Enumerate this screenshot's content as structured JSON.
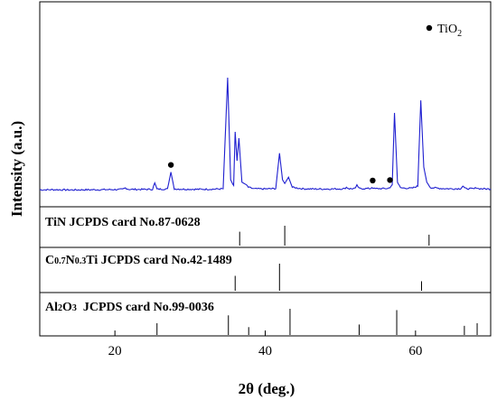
{
  "chart_data": {
    "type": "line",
    "xlabel": "2θ (deg.)",
    "ylabel": "Intensity (a.u.)",
    "xlim": [
      10,
      70
    ],
    "xticks": [
      20,
      40,
      60
    ],
    "grid": false,
    "legend": {
      "marker": "filled-circle",
      "label": "TiO2",
      "placement": "top-right"
    },
    "series": [
      {
        "color": "#1f1fd0",
        "points": [
          [
            10.0,
            2.0
          ],
          [
            12,
            2.1
          ],
          [
            14,
            1.9
          ],
          [
            16,
            2.0
          ],
          [
            18,
            2.1
          ],
          [
            20,
            2.2
          ],
          [
            21.0,
            2.3
          ],
          [
            21.4,
            3.5
          ],
          [
            21.8,
            2.4
          ],
          [
            23,
            2.3
          ],
          [
            25.0,
            2.4
          ],
          [
            25.3,
            7.5
          ],
          [
            25.6,
            2.5
          ],
          [
            27.0,
            2.6
          ],
          [
            27.45,
            16.0
          ],
          [
            27.9,
            2.7
          ],
          [
            29,
            2.5
          ],
          [
            31,
            2.4
          ],
          [
            33,
            2.5
          ],
          [
            34.4,
            2.8
          ],
          [
            35.0,
            91.0
          ],
          [
            35.4,
            10.0
          ],
          [
            35.8,
            5.0
          ],
          [
            36.0,
            48.0
          ],
          [
            36.25,
            25.0
          ],
          [
            36.5,
            43.0
          ],
          [
            36.9,
            8.0
          ],
          [
            37.5,
            6.0
          ],
          [
            37.75,
            4.0
          ],
          [
            38.5,
            2.8
          ],
          [
            40,
            2.7
          ],
          [
            41.4,
            3.0
          ],
          [
            41.9,
            31.0
          ],
          [
            42.3,
            10.0
          ],
          [
            42.6,
            7.0
          ],
          [
            43.1,
            12.0
          ],
          [
            43.6,
            4.0
          ],
          [
            45,
            2.8
          ],
          [
            47,
            2.6
          ],
          [
            49,
            2.7
          ],
          [
            50.5,
            2.8
          ],
          [
            50.8,
            4.0
          ],
          [
            51.2,
            2.8
          ],
          [
            52.0,
            3.0
          ],
          [
            52.2,
            6.0
          ],
          [
            52.5,
            3.0
          ],
          [
            54.0,
            3.0
          ],
          [
            54.2,
            4.0
          ],
          [
            54.5,
            2.9
          ],
          [
            56.3,
            3.0
          ],
          [
            56.6,
            4.0
          ],
          [
            56.9,
            6.0
          ],
          [
            57.2,
            63.0
          ],
          [
            57.6,
            8.0
          ],
          [
            58.0,
            3.5
          ],
          [
            59.5,
            3.2
          ],
          [
            60.3,
            5.0
          ],
          [
            60.7,
            73.0
          ],
          [
            61.1,
            20.0
          ],
          [
            61.5,
            8.0
          ],
          [
            62.0,
            3.8
          ],
          [
            63.5,
            3.0
          ],
          [
            65,
            2.8
          ],
          [
            66.0,
            3.0
          ],
          [
            66.3,
            5.0
          ],
          [
            66.6,
            3.0
          ],
          [
            67.8,
            2.8
          ],
          [
            68.1,
            3.8
          ],
          [
            68.4,
            2.9
          ],
          [
            70.0,
            2.6
          ]
        ]
      }
    ],
    "tio2_markers": [
      27.45,
      54.3,
      56.6
    ],
    "reference_cards": [
      {
        "label": "TiN  JCPDS card No.87-0628",
        "lines": [
          [
            36.6,
            0.7
          ],
          [
            42.6,
            1.0
          ],
          [
            61.8,
            0.55
          ]
        ]
      },
      {
        "label": "C0.7N0.3Ti  JCPDS card No.42-1489",
        "lines": [
          [
            36.0,
            0.55
          ],
          [
            41.9,
            1.0
          ],
          [
            60.8,
            0.35
          ]
        ]
      },
      {
        "label": "Al2O3  JCPDS card No.99-0036",
        "lines": [
          [
            25.6,
            0.45
          ],
          [
            35.1,
            0.75
          ],
          [
            37.8,
            0.3
          ],
          [
            43.3,
            1.0
          ],
          [
            52.5,
            0.4
          ],
          [
            57.5,
            0.95
          ],
          [
            66.5,
            0.35
          ],
          [
            68.2,
            0.45
          ]
        ]
      }
    ]
  },
  "labels": {
    "legend_text": "TiO",
    "legend_sub": "2",
    "card1": {
      "pre": "TiN  JCPDS card No.87-0628"
    },
    "card2": {
      "c": "C",
      "c_sub": "0.7",
      "n": "N",
      "n_sub": "0.3",
      "rest": "Ti  JCPDS card No.42-1489"
    },
    "card3": {
      "al": "Al",
      "al_sub": "2",
      "o": "O",
      "o_sub": "3",
      "rest": "  JCPDS card No.99-0036"
    }
  }
}
